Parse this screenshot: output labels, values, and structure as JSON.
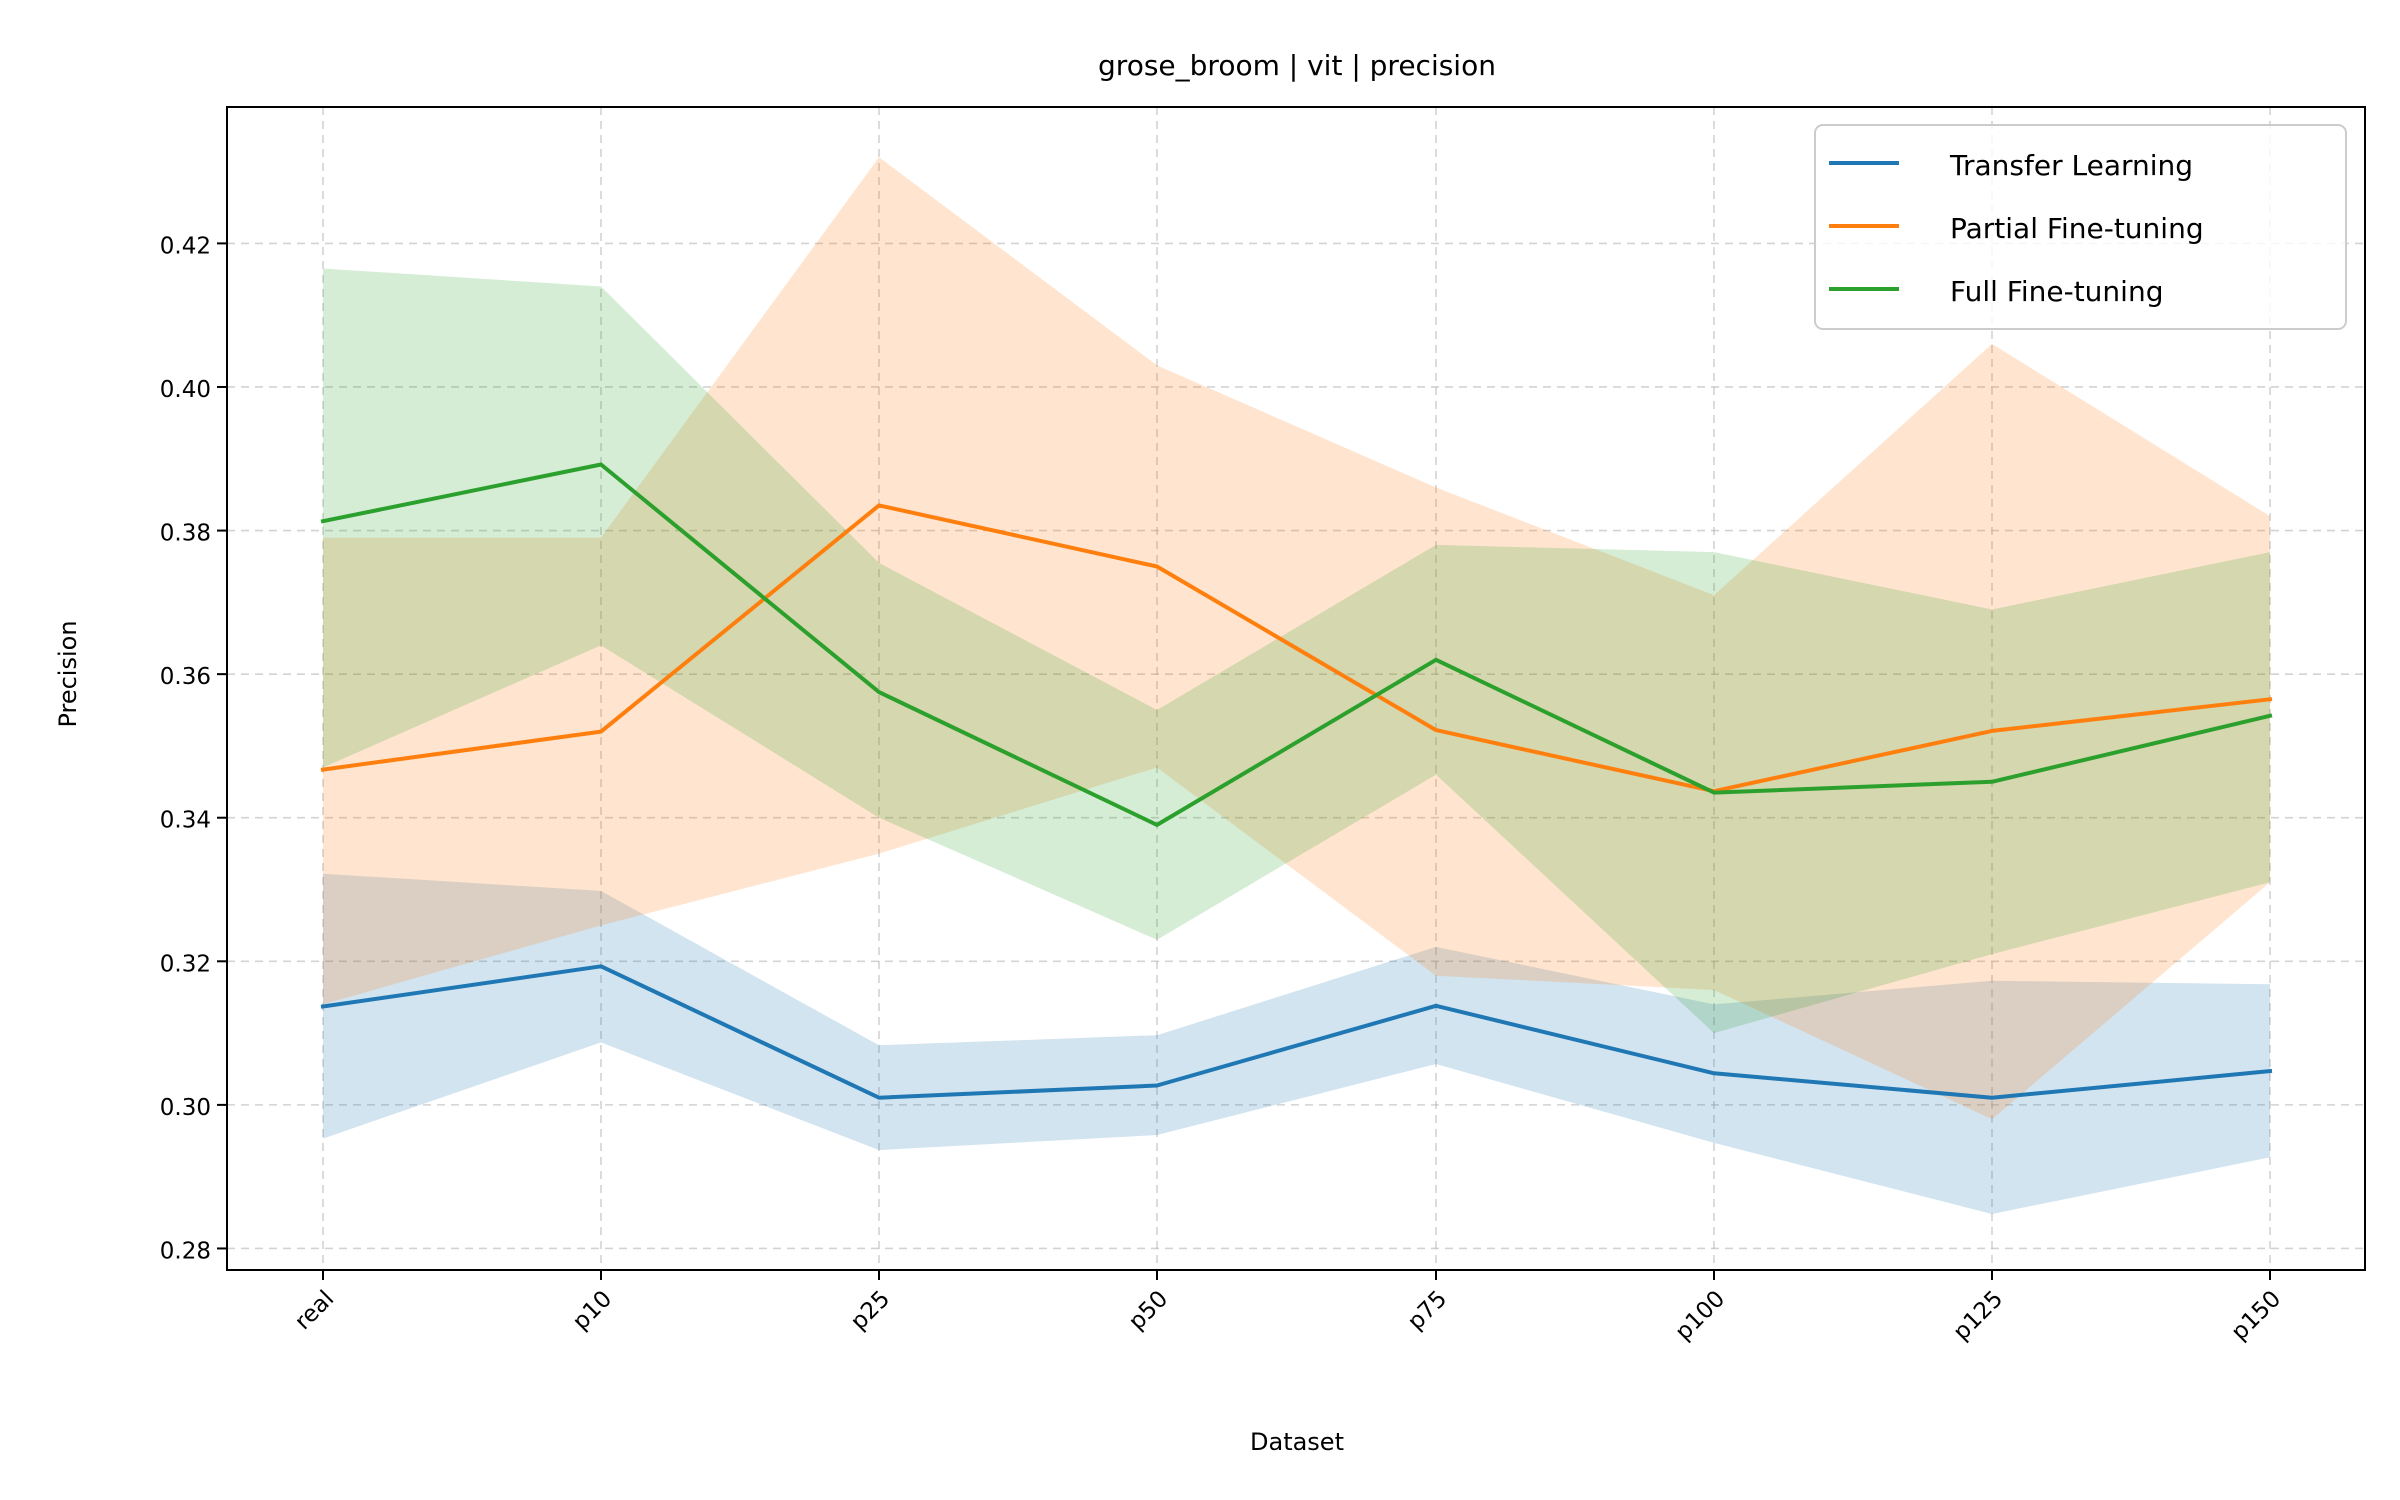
{
  "chart_data": {
    "type": "line",
    "title": "grose_broom | vit | precision",
    "xlabel": "Dataset",
    "ylabel": "Precision",
    "categories": [
      "real",
      "p10",
      "p25",
      "p50",
      "p75",
      "p100",
      "p125",
      "p150"
    ],
    "ylim": [
      0.277,
      0.439
    ],
    "yticks": [
      0.28,
      0.3,
      0.32,
      0.34,
      0.36,
      0.38,
      0.4,
      0.42
    ],
    "ytick_labels": [
      "0.28",
      "0.30",
      "0.32",
      "0.34",
      "0.36",
      "0.38",
      "0.40",
      "0.42"
    ],
    "grid": true,
    "legend_position": "top-right",
    "series": [
      {
        "name": "Transfer Learning",
        "color": "#1f77b4",
        "values": [
          0.3137,
          0.3193,
          0.301,
          0.3027,
          0.3138,
          0.3044,
          0.301,
          0.3047
        ],
        "lower": [
          0.2953,
          0.3087,
          0.2937,
          0.2958,
          0.3057,
          0.2947,
          0.2848,
          0.2927
        ],
        "upper": [
          0.3322,
          0.3298,
          0.3083,
          0.3097,
          0.322,
          0.314,
          0.3173,
          0.3168
        ]
      },
      {
        "name": "Partial Fine-tuning",
        "color": "#ff7f0e",
        "values": [
          0.3467,
          0.352,
          0.3835,
          0.375,
          0.3522,
          0.3437,
          0.3521,
          0.3565
        ],
        "lower": [
          0.314,
          0.325,
          0.335,
          0.347,
          0.318,
          0.316,
          0.298,
          0.331
        ],
        "upper": [
          0.379,
          0.379,
          0.432,
          0.403,
          0.386,
          0.371,
          0.406,
          0.382
        ]
      },
      {
        "name": "Full Fine-tuning",
        "color": "#2ca02c",
        "values": [
          0.3813,
          0.3892,
          0.3575,
          0.339,
          0.362,
          0.3435,
          0.345,
          0.3542
        ],
        "lower": [
          0.347,
          0.364,
          0.34,
          0.323,
          0.346,
          0.31,
          0.321,
          0.331
        ],
        "upper": [
          0.4165,
          0.414,
          0.3755,
          0.355,
          0.378,
          0.377,
          0.369,
          0.377
        ]
      }
    ]
  }
}
